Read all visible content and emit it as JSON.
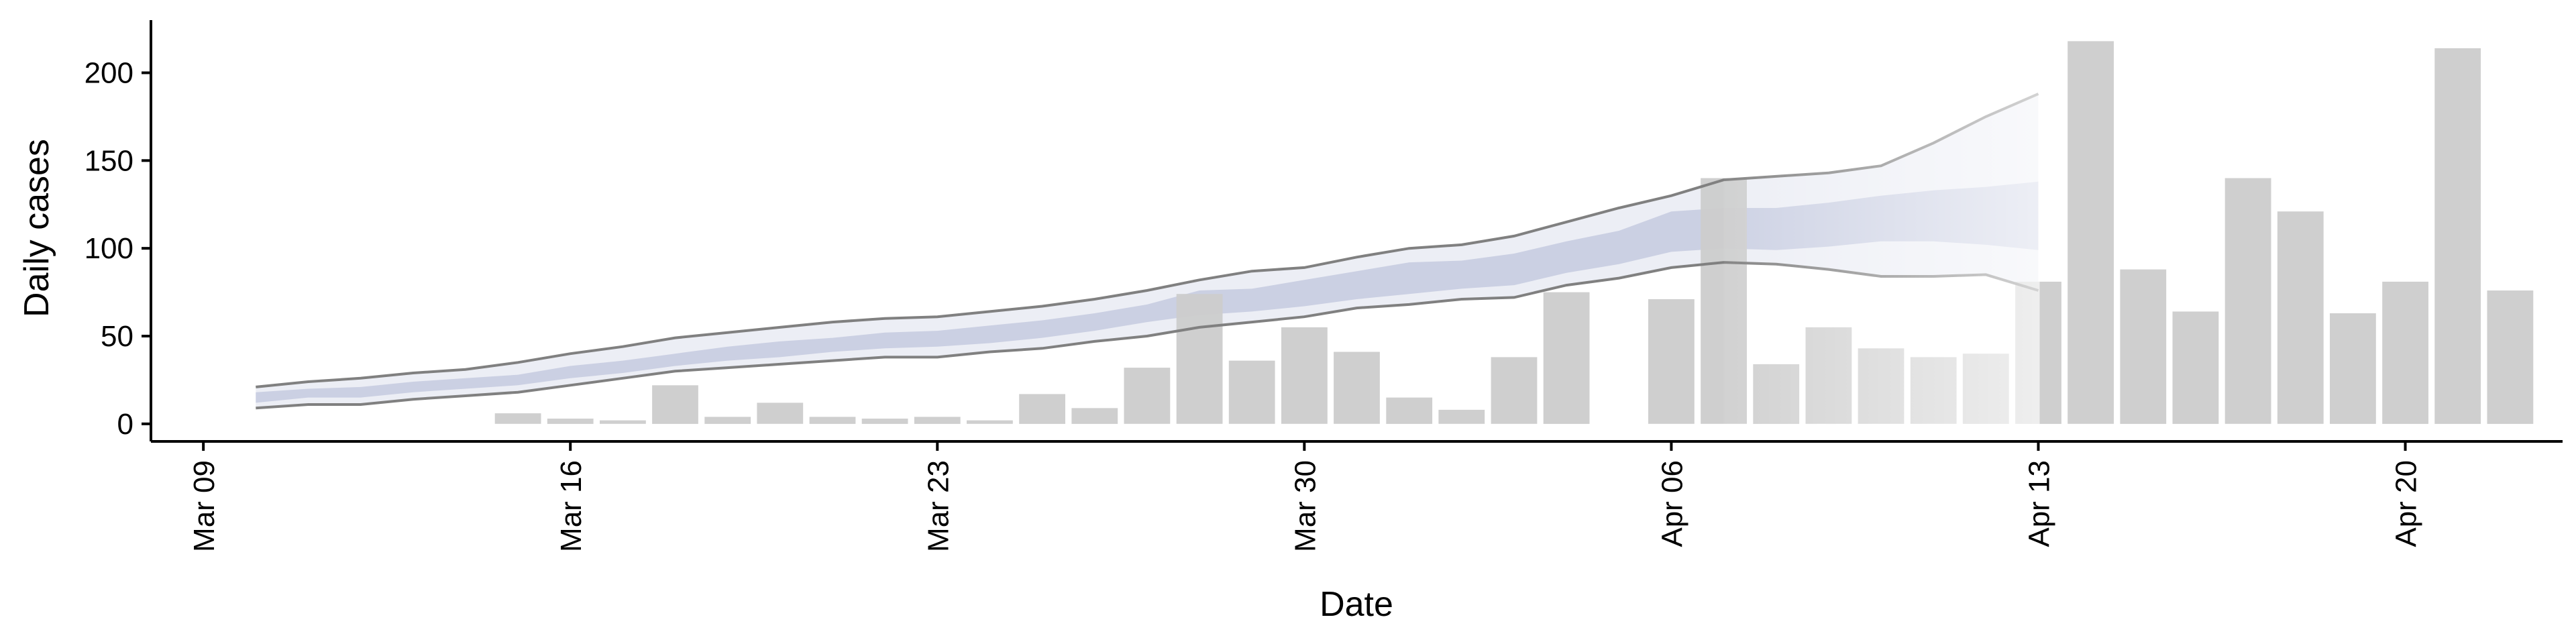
{
  "chart_data": {
    "type": "bar",
    "title": "",
    "xlabel": "Date",
    "ylabel": "Daily cases",
    "ylim": [
      -10,
      230
    ],
    "yticks": [
      0,
      50,
      100,
      150,
      200
    ],
    "xticks": [
      "2020-03-09",
      "2020-03-16",
      "2020-03-23",
      "2020-03-30",
      "2020-04-06",
      "2020-04-13",
      "2020-04-20"
    ],
    "xtick_labels": [
      "Mar 09",
      "Mar 16",
      "Mar 23",
      "Mar 30",
      "Apr 06",
      "Apr 13",
      "Apr 20"
    ],
    "xlim": [
      "2020-03-08",
      "2020-04-23"
    ],
    "grid": false,
    "colors": {
      "bars": "#cccccc",
      "band_outer": "#eceef5",
      "band_inner": "#c5cadf",
      "bound_lines": "#808080",
      "forecast_fade": "#ffffff"
    },
    "bars": {
      "dates": [
        "2020-03-15",
        "2020-03-16",
        "2020-03-17",
        "2020-03-18",
        "2020-03-19",
        "2020-03-20",
        "2020-03-21",
        "2020-03-22",
        "2020-03-23",
        "2020-03-24",
        "2020-03-25",
        "2020-03-26",
        "2020-03-27",
        "2020-03-28",
        "2020-03-29",
        "2020-03-30",
        "2020-03-31",
        "2020-04-01",
        "2020-04-02",
        "2020-04-03",
        "2020-04-04",
        "2020-04-06",
        "2020-04-07",
        "2020-04-08",
        "2020-04-09",
        "2020-04-10",
        "2020-04-11",
        "2020-04-12",
        "2020-04-13",
        "2020-04-14",
        "2020-04-15",
        "2020-04-16",
        "2020-04-17",
        "2020-04-18",
        "2020-04-19",
        "2020-04-20",
        "2020-04-21",
        "2020-04-22"
      ],
      "values": [
        6,
        3,
        2,
        22,
        4,
        12,
        4,
        3,
        4,
        2,
        17,
        9,
        32,
        74,
        36,
        55,
        41,
        15,
        8,
        38,
        75,
        71,
        140,
        34,
        55,
        43,
        38,
        40,
        81,
        218,
        88,
        64,
        140,
        121,
        63,
        81,
        214,
        76
      ]
    },
    "estimate": {
      "dates": [
        "2020-03-10",
        "2020-03-11",
        "2020-03-12",
        "2020-03-13",
        "2020-03-14",
        "2020-03-15",
        "2020-03-16",
        "2020-03-17",
        "2020-03-18",
        "2020-03-19",
        "2020-03-20",
        "2020-03-21",
        "2020-03-22",
        "2020-03-23",
        "2020-03-24",
        "2020-03-25",
        "2020-03-26",
        "2020-03-27",
        "2020-03-28",
        "2020-03-29",
        "2020-03-30",
        "2020-03-31",
        "2020-04-01",
        "2020-04-02",
        "2020-04-03",
        "2020-04-04",
        "2020-04-05",
        "2020-04-06",
        "2020-04-07",
        "2020-04-08",
        "2020-04-09",
        "2020-04-10",
        "2020-04-11",
        "2020-04-12",
        "2020-04-13"
      ],
      "outer_lower": [
        9,
        11,
        11,
        14,
        16,
        18,
        22,
        26,
        30,
        32,
        34,
        36,
        38,
        38,
        41,
        43,
        47,
        50,
        55,
        58,
        61,
        66,
        68,
        71,
        72,
        79,
        83,
        89,
        92,
        91,
        88,
        84,
        84,
        85,
        76
      ],
      "outer_upper": [
        21,
        24,
        26,
        29,
        31,
        35,
        40,
        44,
        49,
        52,
        55,
        58,
        60,
        61,
        64,
        67,
        71,
        76,
        82,
        87,
        89,
        95,
        100,
        102,
        107,
        115,
        123,
        130,
        139,
        141,
        143,
        147,
        160,
        175,
        188
      ],
      "inner_lower": [
        12,
        15,
        15,
        18,
        20,
        22,
        26,
        29,
        33,
        36,
        38,
        41,
        43,
        44,
        46,
        49,
        53,
        58,
        62,
        64,
        67,
        71,
        74,
        77,
        79,
        86,
        91,
        98,
        100,
        99,
        101,
        104,
        104,
        102,
        99
      ],
      "inner_upper": [
        18,
        20,
        21,
        24,
        26,
        28,
        33,
        36,
        40,
        44,
        47,
        49,
        52,
        53,
        56,
        59,
        63,
        68,
        76,
        77,
        82,
        87,
        92,
        93,
        97,
        104,
        110,
        121,
        123,
        123,
        126,
        130,
        133,
        135,
        138
      ]
    },
    "forecast_start": "2020-04-07"
  }
}
